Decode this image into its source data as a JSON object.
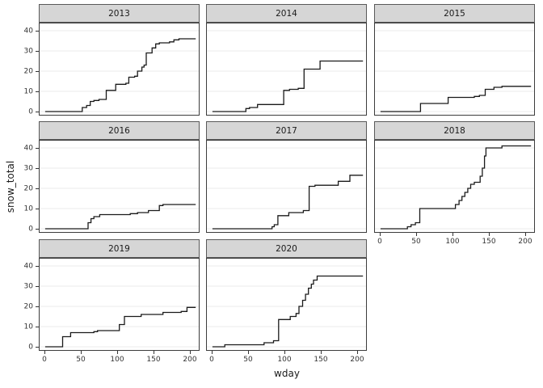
{
  "figure": {
    "colors": {
      "background": "#ffffff",
      "strip_fill": "#d6d6d6",
      "strip_border": "#595959",
      "panel_border": "#3c3c3c",
      "grid": "#ebebeb",
      "line": "#1a1a1a",
      "tick_text": "#333333"
    }
  },
  "chart_data": {
    "type": "line",
    "subtype": "step-cumulative-faceted",
    "title": "",
    "xlabel": "wday",
    "ylabel": "snow_total",
    "xlim": [
      0,
      210
    ],
    "ylim": [
      0,
      41
    ],
    "x_ticks": [
      0,
      50,
      100,
      150,
      200
    ],
    "y_ticks": [
      0,
      10,
      20,
      30,
      40
    ],
    "grid": "horizontal-major",
    "legend": "none",
    "facet_columns": 3,
    "facets": [
      {
        "label": "2013",
        "points": [
          [
            1,
            0
          ],
          [
            52,
            2
          ],
          [
            58,
            3
          ],
          [
            63,
            5
          ],
          [
            68,
            5.5
          ],
          [
            75,
            6
          ],
          [
            85,
            10.5
          ],
          [
            98,
            13.5
          ],
          [
            112,
            14
          ],
          [
            116,
            17
          ],
          [
            124,
            17.5
          ],
          [
            128,
            20
          ],
          [
            134,
            22
          ],
          [
            137,
            23
          ],
          [
            140,
            29
          ],
          [
            148,
            31.5
          ],
          [
            153,
            33.5
          ],
          [
            158,
            34
          ],
          [
            172,
            34.5
          ],
          [
            178,
            35.5
          ],
          [
            185,
            36
          ],
          [
            208,
            36
          ]
        ]
      },
      {
        "label": "2014",
        "points": [
          [
            1,
            0
          ],
          [
            47,
            1.5
          ],
          [
            52,
            2
          ],
          [
            63,
            3.5
          ],
          [
            99,
            10.5
          ],
          [
            107,
            11
          ],
          [
            119,
            11.5
          ],
          [
            127,
            21
          ],
          [
            149,
            25
          ],
          [
            208,
            25
          ]
        ]
      },
      {
        "label": "2015",
        "points": [
          [
            1,
            0
          ],
          [
            56,
            4
          ],
          [
            94,
            7
          ],
          [
            130,
            7.5
          ],
          [
            137,
            8
          ],
          [
            145,
            11
          ],
          [
            157,
            12
          ],
          [
            168,
            12.5
          ],
          [
            208,
            12.5
          ]
        ]
      },
      {
        "label": "2016",
        "points": [
          [
            1,
            0
          ],
          [
            60,
            3
          ],
          [
            64,
            5
          ],
          [
            68,
            6
          ],
          [
            76,
            7
          ],
          [
            118,
            7.5
          ],
          [
            128,
            8
          ],
          [
            143,
            9
          ],
          [
            158,
            11.5
          ],
          [
            163,
            12
          ],
          [
            208,
            12
          ]
        ]
      },
      {
        "label": "2017",
        "points": [
          [
            1,
            0
          ],
          [
            83,
            1
          ],
          [
            86,
            2
          ],
          [
            91,
            6.5
          ],
          [
            106,
            8
          ],
          [
            126,
            9
          ],
          [
            134,
            21
          ],
          [
            142,
            21.5
          ],
          [
            174,
            23.5
          ],
          [
            190,
            26.5
          ],
          [
            208,
            26.5
          ]
        ]
      },
      {
        "label": "2018",
        "points": [
          [
            1,
            0
          ],
          [
            38,
            1
          ],
          [
            43,
            2
          ],
          [
            49,
            3
          ],
          [
            55,
            10
          ],
          [
            104,
            12
          ],
          [
            109,
            14
          ],
          [
            113,
            16
          ],
          [
            117,
            18
          ],
          [
            121,
            20
          ],
          [
            125,
            22
          ],
          [
            130,
            23
          ],
          [
            138,
            26
          ],
          [
            141,
            30
          ],
          [
            144,
            36
          ],
          [
            146,
            40
          ],
          [
            168,
            41
          ],
          [
            208,
            41
          ]
        ]
      },
      {
        "label": "2019",
        "points": [
          [
            1,
            0
          ],
          [
            25,
            5
          ],
          [
            36,
            7
          ],
          [
            68,
            7.5
          ],
          [
            73,
            8
          ],
          [
            103,
            11
          ],
          [
            110,
            15
          ],
          [
            133,
            16
          ],
          [
            163,
            17
          ],
          [
            188,
            17.5
          ],
          [
            196,
            19.5
          ],
          [
            208,
            19.5
          ]
        ]
      },
      {
        "label": "2020",
        "points": [
          [
            1,
            0
          ],
          [
            18,
            1
          ],
          [
            72,
            2
          ],
          [
            85,
            3
          ],
          [
            92,
            13.5
          ],
          [
            108,
            15
          ],
          [
            116,
            16.5
          ],
          [
            120,
            20
          ],
          [
            125,
            23
          ],
          [
            129,
            26
          ],
          [
            133,
            29
          ],
          [
            137,
            31
          ],
          [
            140,
            33
          ],
          [
            145,
            35
          ],
          [
            208,
            35
          ]
        ]
      }
    ]
  }
}
